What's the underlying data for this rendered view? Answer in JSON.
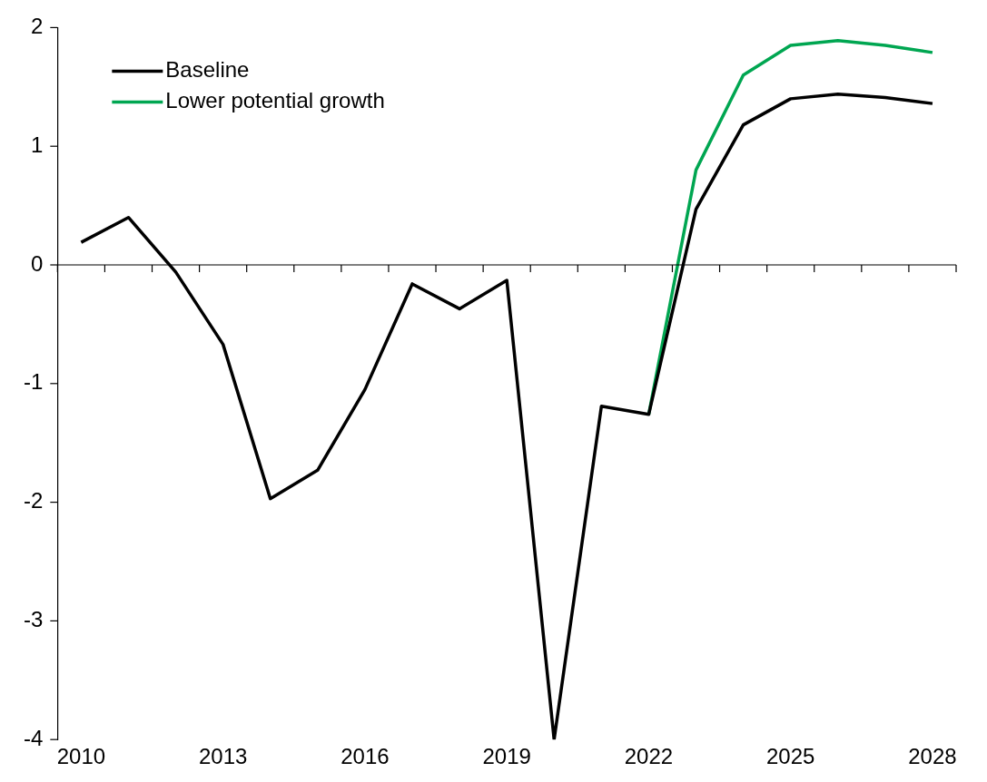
{
  "chart_data": {
    "type": "line",
    "categories": [
      "2010",
      null,
      null,
      "2013",
      null,
      null,
      "2016",
      null,
      null,
      "2019",
      null,
      null,
      "2022",
      null,
      null,
      "2025",
      null,
      null,
      "2028"
    ],
    "series": [
      {
        "name": "Baseline",
        "color": "#000000",
        "values": [
          0.19,
          0.4,
          -0.06,
          -0.67,
          -1.97,
          -1.73,
          -1.05,
          -0.16,
          -0.37,
          -0.13,
          -4.0,
          -1.19,
          -1.26,
          0.47,
          1.18,
          1.4,
          1.44,
          1.41,
          1.36
        ]
      },
      {
        "name": "Lower potential growth",
        "color": "#00a651",
        "values": [
          null,
          null,
          null,
          null,
          null,
          null,
          null,
          null,
          null,
          null,
          null,
          null,
          -1.26,
          0.8,
          1.6,
          1.85,
          1.89,
          1.85,
          1.79
        ]
      }
    ],
    "ylim": [
      -4,
      2
    ],
    "yticks": [
      -4,
      -3,
      -2,
      -1,
      0,
      1,
      2
    ],
    "ref_lines": [
      {
        "axis": "y",
        "value": 0,
        "color": "#000000",
        "line_style": "solid"
      }
    ],
    "grid": false,
    "legend": "top left",
    "marker": "none",
    "line_style": "solid"
  }
}
